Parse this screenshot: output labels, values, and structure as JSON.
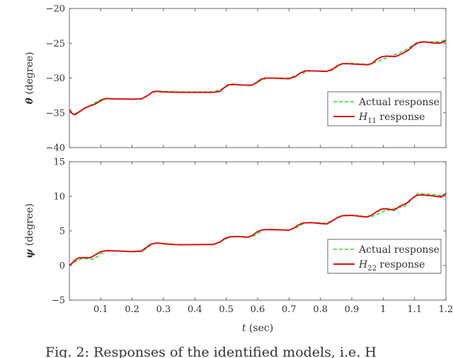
{
  "chart_data": [
    {
      "type": "line",
      "ylabel_symbol": "θ",
      "ylabel_unit": " (degree)",
      "xlim": [
        0,
        1.2
      ],
      "ylim": [
        -40,
        -20
      ],
      "yticks": [
        -40,
        -35,
        -30,
        -25,
        -20
      ],
      "yticklabels": [
        "−40",
        "−35",
        "−30",
        "−25",
        "−20"
      ],
      "grid": false,
      "legend_position": "right",
      "series": [
        {
          "name": "Actual response",
          "style": "dashed",
          "color": "#22dd22",
          "points": [
            [
              0,
              -34.6
            ],
            [
              0.01,
              -35.0
            ],
            [
              0.02,
              -35.1
            ],
            [
              0.04,
              -34.6
            ],
            [
              0.06,
              -34.1
            ],
            [
              0.08,
              -33.6
            ],
            [
              0.1,
              -33.1
            ],
            [
              0.12,
              -33.0
            ],
            [
              0.14,
              -33.0
            ],
            [
              0.2,
              -33.0
            ],
            [
              0.23,
              -33.0
            ],
            [
              0.25,
              -32.5
            ],
            [
              0.27,
              -31.9
            ],
            [
              0.3,
              -31.9
            ],
            [
              0.35,
              -32.0
            ],
            [
              0.46,
              -32.0
            ],
            [
              0.49,
              -31.5
            ],
            [
              0.51,
              -31.0
            ],
            [
              0.55,
              -31.0
            ],
            [
              0.58,
              -31.0
            ],
            [
              0.61,
              -30.4
            ],
            [
              0.63,
              -30.0
            ],
            [
              0.66,
              -30.0
            ],
            [
              0.7,
              -30.0
            ],
            [
              0.73,
              -29.5
            ],
            [
              0.76,
              -29.0
            ],
            [
              0.8,
              -29.0
            ],
            [
              0.83,
              -29.0
            ],
            [
              0.85,
              -28.5
            ],
            [
              0.87,
              -27.9
            ],
            [
              0.9,
              -27.9
            ],
            [
              0.94,
              -28.0
            ],
            [
              0.96,
              -28.0
            ],
            [
              1.0,
              -27.3
            ],
            [
              1.04,
              -26.6
            ],
            [
              1.07,
              -26.0
            ],
            [
              1.09,
              -25.4
            ],
            [
              1.11,
              -24.8
            ],
            [
              1.15,
              -24.8
            ],
            [
              1.18,
              -24.8
            ],
            [
              1.2,
              -24.5
            ]
          ]
        },
        {
          "name": "H",
          "name_sub": "11",
          "name_suffix": " response",
          "style": "solid",
          "color": "#dd1111",
          "points": [
            [
              0,
              -34.5
            ],
            [
              0.005,
              -34.9
            ],
            [
              0.01,
              -35.15
            ],
            [
              0.015,
              -35.25
            ],
            [
              0.02,
              -35.2
            ],
            [
              0.03,
              -34.9
            ],
            [
              0.05,
              -34.3
            ],
            [
              0.065,
              -34.0
            ],
            [
              0.08,
              -33.8
            ],
            [
              0.095,
              -33.4
            ],
            [
              0.11,
              -33.0
            ],
            [
              0.125,
              -32.95
            ],
            [
              0.14,
              -33.0
            ],
            [
              0.2,
              -33.05
            ],
            [
              0.23,
              -33.0
            ],
            [
              0.25,
              -32.5
            ],
            [
              0.265,
              -32.0
            ],
            [
              0.28,
              -31.9
            ],
            [
              0.3,
              -32.0
            ],
            [
              0.35,
              -32.05
            ],
            [
              0.46,
              -32.05
            ],
            [
              0.48,
              -31.9
            ],
            [
              0.49,
              -31.5
            ],
            [
              0.505,
              -31.0
            ],
            [
              0.52,
              -30.9
            ],
            [
              0.55,
              -31.0
            ],
            [
              0.58,
              -31.05
            ],
            [
              0.595,
              -30.7
            ],
            [
              0.61,
              -30.2
            ],
            [
              0.625,
              -30.0
            ],
            [
              0.64,
              -30.0
            ],
            [
              0.7,
              -30.1
            ],
            [
              0.72,
              -29.8
            ],
            [
              0.735,
              -29.3
            ],
            [
              0.75,
              -29.0
            ],
            [
              0.76,
              -28.95
            ],
            [
              0.82,
              -29.05
            ],
            [
              0.84,
              -28.7
            ],
            [
              0.855,
              -28.2
            ],
            [
              0.87,
              -27.95
            ],
            [
              0.89,
              -27.95
            ],
            [
              0.95,
              -28.1
            ],
            [
              0.965,
              -27.9
            ],
            [
              0.98,
              -27.3
            ],
            [
              0.995,
              -26.95
            ],
            [
              1.01,
              -26.85
            ],
            [
              1.04,
              -26.9
            ],
            [
              1.06,
              -26.5
            ],
            [
              1.08,
              -26.0
            ],
            [
              1.095,
              -25.4
            ],
            [
              1.11,
              -24.95
            ],
            [
              1.13,
              -24.8
            ],
            [
              1.16,
              -24.95
            ],
            [
              1.18,
              -25.0
            ],
            [
              1.195,
              -24.75
            ],
            [
              1.2,
              -24.55
            ]
          ]
        }
      ]
    },
    {
      "type": "line",
      "ylabel_symbol": "ψ",
      "ylabel_unit": " (degree)",
      "xlabel_symbol": "t",
      "xlabel_unit": " (sec)",
      "xlim": [
        0,
        1.2
      ],
      "ylim": [
        -5,
        15
      ],
      "xticks": [
        0.1,
        0.2,
        0.3,
        0.4,
        0.5,
        0.6,
        0.7,
        0.8,
        0.9,
        1,
        1.1,
        1.2
      ],
      "xticklabels": [
        "0.1",
        "0.2",
        "0.3",
        "0.4",
        "0.5",
        "0.6",
        "0.7",
        "0.8",
        "0.9",
        "1",
        "1.1",
        "1.2"
      ],
      "yticks": [
        -5,
        0,
        5,
        10,
        15
      ],
      "yticklabels": [
        "−5",
        "0",
        "5",
        "10",
        "15"
      ],
      "grid": false,
      "legend_position": "bottom-right",
      "series": [
        {
          "name": "Actual response",
          "style": "dashed",
          "color": "#22dd22",
          "points": [
            [
              0,
              0
            ],
            [
              0.02,
              0.6
            ],
            [
              0.04,
              1.0
            ],
            [
              0.06,
              1.0
            ],
            [
              0.075,
              0.9
            ],
            [
              0.09,
              1.3
            ],
            [
              0.11,
              2.1
            ],
            [
              0.15,
              2.1
            ],
            [
              0.2,
              2.0
            ],
            [
              0.23,
              2.0
            ],
            [
              0.25,
              2.6
            ],
            [
              0.27,
              3.2
            ],
            [
              0.3,
              3.2
            ],
            [
              0.35,
              3.0
            ],
            [
              0.46,
              3.0
            ],
            [
              0.48,
              3.4
            ],
            [
              0.51,
              4.1
            ],
            [
              0.55,
              4.2
            ],
            [
              0.58,
              4.1
            ],
            [
              0.6,
              4.6
            ],
            [
              0.62,
              5.2
            ],
            [
              0.66,
              5.2
            ],
            [
              0.7,
              5.1
            ],
            [
              0.73,
              5.6
            ],
            [
              0.75,
              6.2
            ],
            [
              0.78,
              6.2
            ],
            [
              0.82,
              6.1
            ],
            [
              0.85,
              6.8
            ],
            [
              0.88,
              7.3
            ],
            [
              0.92,
              7.2
            ],
            [
              0.96,
              7.0
            ],
            [
              1.0,
              7.8
            ],
            [
              1.04,
              8.3
            ],
            [
              1.07,
              8.6
            ],
            [
              1.09,
              9.5
            ],
            [
              1.11,
              10.4
            ],
            [
              1.15,
              10.3
            ],
            [
              1.18,
              10.1
            ],
            [
              1.2,
              10.2
            ]
          ]
        },
        {
          "name": "H",
          "name_sub": "22",
          "name_suffix": " response",
          "style": "solid",
          "color": "#dd1111",
          "points": [
            [
              0,
              0
            ],
            [
              0.01,
              0.4
            ],
            [
              0.02,
              0.85
            ],
            [
              0.03,
              1.1
            ],
            [
              0.045,
              1.15
            ],
            [
              0.06,
              1.1
            ],
            [
              0.07,
              1.2
            ],
            [
              0.085,
              1.6
            ],
            [
              0.1,
              2.0
            ],
            [
              0.12,
              2.15
            ],
            [
              0.15,
              2.1
            ],
            [
              0.2,
              2.0
            ],
            [
              0.23,
              2.1
            ],
            [
              0.245,
              2.6
            ],
            [
              0.26,
              3.1
            ],
            [
              0.28,
              3.25
            ],
            [
              0.31,
              3.1
            ],
            [
              0.35,
              3.0
            ],
            [
              0.46,
              3.05
            ],
            [
              0.48,
              3.4
            ],
            [
              0.495,
              3.9
            ],
            [
              0.51,
              4.15
            ],
            [
              0.53,
              4.2
            ],
            [
              0.57,
              4.1
            ],
            [
              0.585,
              4.4
            ],
            [
              0.6,
              4.9
            ],
            [
              0.615,
              5.15
            ],
            [
              0.64,
              5.2
            ],
            [
              0.7,
              5.1
            ],
            [
              0.715,
              5.4
            ],
            [
              0.73,
              5.85
            ],
            [
              0.745,
              6.15
            ],
            [
              0.77,
              6.2
            ],
            [
              0.82,
              6.0
            ],
            [
              0.84,
              6.5
            ],
            [
              0.855,
              6.95
            ],
            [
              0.87,
              7.2
            ],
            [
              0.9,
              7.25
            ],
            [
              0.945,
              7.0
            ],
            [
              0.96,
              7.2
            ],
            [
              0.98,
              7.8
            ],
            [
              0.995,
              8.15
            ],
            [
              1.01,
              8.2
            ],
            [
              1.035,
              8.0
            ],
            [
              1.055,
              8.6
            ],
            [
              1.075,
              9.0
            ],
            [
              1.09,
              9.6
            ],
            [
              1.105,
              10.1
            ],
            [
              1.12,
              10.2
            ],
            [
              1.15,
              10.1
            ],
            [
              1.185,
              9.9
            ],
            [
              1.2,
              10.45
            ]
          ]
        }
      ]
    }
  ],
  "caption": "Fig. 2: Responses of the identified models, i.e. H"
}
